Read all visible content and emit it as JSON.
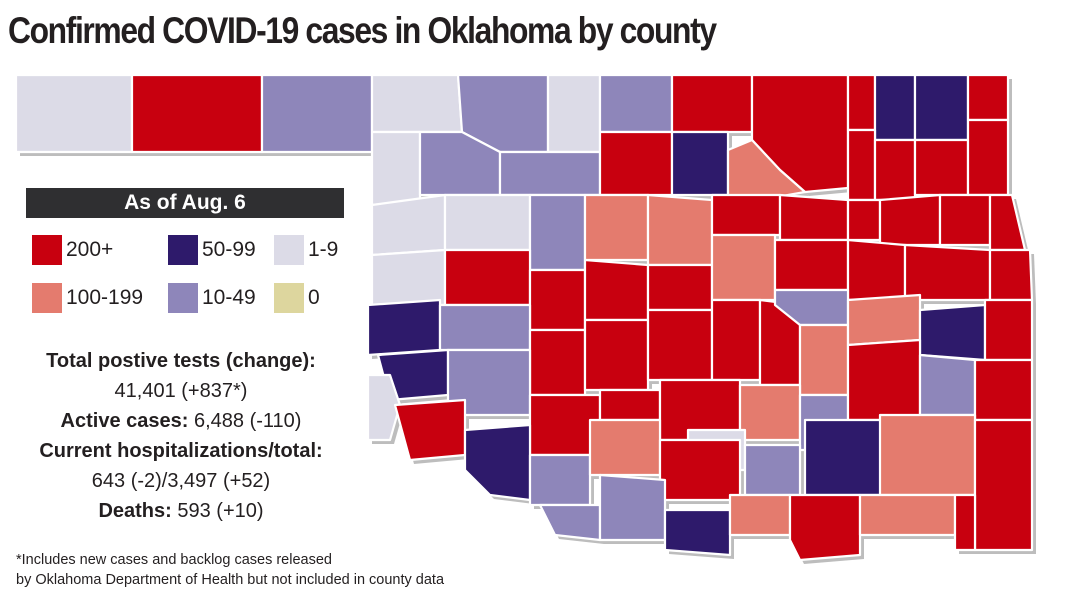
{
  "title": "Confirmed COVID-19 cases in Oklahoma by county",
  "legend": {
    "heading": "As of Aug. 6",
    "items": [
      {
        "label": "200+",
        "color": "#c8000f"
      },
      {
        "label": "50-99",
        "color": "#2e1a6b"
      },
      {
        "label": "1-9",
        "color": "#dcdbe7"
      },
      {
        "label": "100-199",
        "color": "#e47b6e"
      },
      {
        "label": "10-49",
        "color": "#8e86ba"
      },
      {
        "label": "0",
        "color": "#ddd69e"
      }
    ]
  },
  "stats": {
    "total_label": "Total postive tests (change):",
    "total_value": "41,401 (+837*)",
    "active_label": "Active cases:",
    "active_value": "6,488 (-110)",
    "hosp_label": "Current hospitalizations/total:",
    "hosp_value": "643 (-2)/3,497 (+52)",
    "deaths_label": "Deaths:",
    "deaths_value": "593 (+10)"
  },
  "footnote": {
    "line1": "*Includes new cases and backlog cases released",
    "line2": "by Oklahoma Department of Health but not included in county data"
  }
}
